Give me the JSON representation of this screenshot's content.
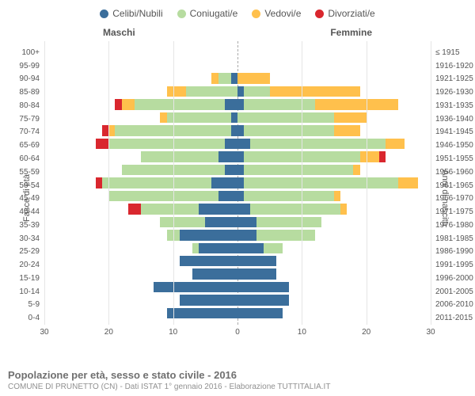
{
  "legend": [
    {
      "label": "Celibi/Nubili",
      "color": "#3b6e9b"
    },
    {
      "label": "Coniugati/e",
      "color": "#b7dca0"
    },
    {
      "label": "Vedovi/e",
      "color": "#ffc04c"
    },
    {
      "label": "Divorziati/e",
      "color": "#d9272e"
    }
  ],
  "gender": {
    "male": "Maschi",
    "female": "Femmine"
  },
  "axes": {
    "left_title": "Fasce di età",
    "right_title": "Anni di nascita",
    "xmax": 30,
    "xticks_male": [
      30,
      20,
      10,
      0
    ],
    "xticks_female": [
      0,
      10,
      20,
      30
    ],
    "grid_color": "#e5e5e5",
    "center_dash_color": "#aaaaaa",
    "background": "#ffffff"
  },
  "rows": [
    {
      "age": "100+",
      "birth": "≤ 1915",
      "male": {
        "c": 0,
        "m": 0,
        "w": 0,
        "d": 0
      },
      "female": {
        "c": 0,
        "m": 0,
        "w": 0,
        "d": 0
      }
    },
    {
      "age": "95-99",
      "birth": "1916-1920",
      "male": {
        "c": 0,
        "m": 0,
        "w": 0,
        "d": 0
      },
      "female": {
        "c": 0,
        "m": 0,
        "w": 0,
        "d": 0
      }
    },
    {
      "age": "90-94",
      "birth": "1921-1925",
      "male": {
        "c": 1,
        "m": 2,
        "w": 1,
        "d": 0
      },
      "female": {
        "c": 0,
        "m": 0,
        "w": 5,
        "d": 0
      }
    },
    {
      "age": "85-89",
      "birth": "1926-1930",
      "male": {
        "c": 0,
        "m": 8,
        "w": 3,
        "d": 0
      },
      "female": {
        "c": 1,
        "m": 4,
        "w": 14,
        "d": 0
      }
    },
    {
      "age": "80-84",
      "birth": "1931-1935",
      "male": {
        "c": 2,
        "m": 14,
        "w": 2,
        "d": 1
      },
      "female": {
        "c": 1,
        "m": 11,
        "w": 13,
        "d": 0
      }
    },
    {
      "age": "75-79",
      "birth": "1936-1940",
      "male": {
        "c": 1,
        "m": 10,
        "w": 1,
        "d": 0
      },
      "female": {
        "c": 0,
        "m": 15,
        "w": 5,
        "d": 0
      }
    },
    {
      "age": "70-74",
      "birth": "1941-1945",
      "male": {
        "c": 1,
        "m": 18,
        "w": 1,
        "d": 1
      },
      "female": {
        "c": 1,
        "m": 14,
        "w": 4,
        "d": 0
      }
    },
    {
      "age": "65-69",
      "birth": "1946-1950",
      "male": {
        "c": 2,
        "m": 18,
        "w": 0,
        "d": 2
      },
      "female": {
        "c": 2,
        "m": 21,
        "w": 3,
        "d": 0
      }
    },
    {
      "age": "60-64",
      "birth": "1951-1955",
      "male": {
        "c": 3,
        "m": 12,
        "w": 0,
        "d": 0
      },
      "female": {
        "c": 1,
        "m": 18,
        "w": 3,
        "d": 1
      }
    },
    {
      "age": "55-59",
      "birth": "1956-1960",
      "male": {
        "c": 2,
        "m": 16,
        "w": 0,
        "d": 0
      },
      "female": {
        "c": 1,
        "m": 17,
        "w": 1,
        "d": 0
      }
    },
    {
      "age": "50-54",
      "birth": "1961-1965",
      "male": {
        "c": 4,
        "m": 17,
        "w": 0,
        "d": 1
      },
      "female": {
        "c": 1,
        "m": 24,
        "w": 3,
        "d": 0
      }
    },
    {
      "age": "45-49",
      "birth": "1966-1970",
      "male": {
        "c": 3,
        "m": 17,
        "w": 0,
        "d": 0
      },
      "female": {
        "c": 1,
        "m": 14,
        "w": 1,
        "d": 0
      }
    },
    {
      "age": "40-44",
      "birth": "1971-1975",
      "male": {
        "c": 6,
        "m": 9,
        "w": 0,
        "d": 2
      },
      "female": {
        "c": 2,
        "m": 14,
        "w": 1,
        "d": 0
      }
    },
    {
      "age": "35-39",
      "birth": "1976-1980",
      "male": {
        "c": 5,
        "m": 7,
        "w": 0,
        "d": 0
      },
      "female": {
        "c": 3,
        "m": 10,
        "w": 0,
        "d": 0
      }
    },
    {
      "age": "30-34",
      "birth": "1981-1985",
      "male": {
        "c": 9,
        "m": 2,
        "w": 0,
        "d": 0
      },
      "female": {
        "c": 3,
        "m": 9,
        "w": 0,
        "d": 0
      }
    },
    {
      "age": "25-29",
      "birth": "1986-1990",
      "male": {
        "c": 6,
        "m": 1,
        "w": 0,
        "d": 0
      },
      "female": {
        "c": 4,
        "m": 3,
        "w": 0,
        "d": 0
      }
    },
    {
      "age": "20-24",
      "birth": "1991-1995",
      "male": {
        "c": 9,
        "m": 0,
        "w": 0,
        "d": 0
      },
      "female": {
        "c": 6,
        "m": 0,
        "w": 0,
        "d": 0
      }
    },
    {
      "age": "15-19",
      "birth": "1996-2000",
      "male": {
        "c": 7,
        "m": 0,
        "w": 0,
        "d": 0
      },
      "female": {
        "c": 6,
        "m": 0,
        "w": 0,
        "d": 0
      }
    },
    {
      "age": "10-14",
      "birth": "2001-2005",
      "male": {
        "c": 13,
        "m": 0,
        "w": 0,
        "d": 0
      },
      "female": {
        "c": 8,
        "m": 0,
        "w": 0,
        "d": 0
      }
    },
    {
      "age": "5-9",
      "birth": "2006-2010",
      "male": {
        "c": 9,
        "m": 0,
        "w": 0,
        "d": 0
      },
      "female": {
        "c": 8,
        "m": 0,
        "w": 0,
        "d": 0
      }
    },
    {
      "age": "0-4",
      "birth": "2011-2015",
      "male": {
        "c": 11,
        "m": 0,
        "w": 0,
        "d": 0
      },
      "female": {
        "c": 7,
        "m": 0,
        "w": 0,
        "d": 0
      }
    }
  ],
  "footer": {
    "title": "Popolazione per età, sesso e stato civile - 2016",
    "subtitle": "COMUNE DI PRUNETTO (CN) - Dati ISTAT 1° gennaio 2016 - Elaborazione TUTTITALIA.IT"
  },
  "style": {
    "row_height_pct": 82,
    "label_fontsize": 10,
    "legend_fontsize": 12,
    "title_fontsize": 13
  }
}
